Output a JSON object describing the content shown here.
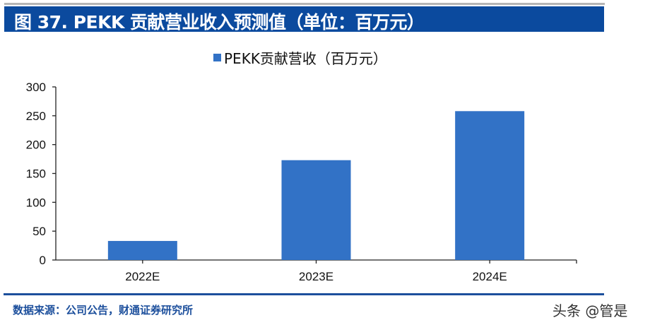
{
  "header": {
    "title": "图 37. PEKK 贡献营业收入预测值（单位：百万元）",
    "title_bar_color": "#0b4a9e"
  },
  "legend": {
    "label": "PEKK贡献营收（百万元）",
    "color": "#3272c6"
  },
  "footer": {
    "source": "数据来源：公司公告，财通证券研究所",
    "watermark": "头条 @管是"
  },
  "chart_data": {
    "type": "bar",
    "title": "",
    "categories": [
      "2022E",
      "2023E",
      "2024E"
    ],
    "series": [
      {
        "name": "PEKK贡献营收（百万元）",
        "values": [
          33,
          173,
          258
        ],
        "color": "#3272c6"
      }
    ],
    "xlabel": "",
    "ylabel": "",
    "ylim": [
      0,
      300
    ],
    "yticks": [
      0,
      50,
      100,
      150,
      200,
      250,
      300
    ],
    "grid": false,
    "legend_position": "top"
  }
}
